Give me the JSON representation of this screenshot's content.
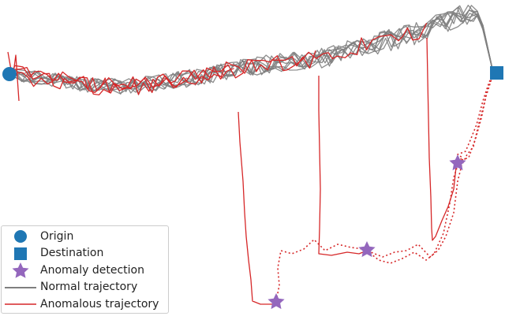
{
  "colors": {
    "normal": "#7f7f7f",
    "anomalous": "#d62728",
    "marker": "#1f77b4",
    "star": "#9467bd"
  },
  "legend": {
    "items": [
      {
        "label": "Origin",
        "symbol": "circle-marker"
      },
      {
        "label": "Destination",
        "symbol": "square-marker"
      },
      {
        "label": "Anomaly detection",
        "symbol": "star-marker"
      },
      {
        "label": "Normal trajectory",
        "symbol": "gray-line"
      },
      {
        "label": "Anomalous trajectory",
        "symbol": "red-line"
      }
    ]
  }
}
